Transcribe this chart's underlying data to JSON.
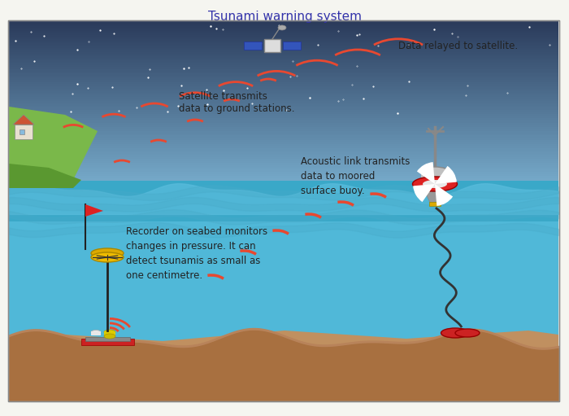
{
  "title": "Tsunami warning system",
  "title_color": "#3333aa",
  "bg_color": "#f5f5f0",
  "sky_color_top": "#2a3a5a",
  "sky_color_bottom": "#7ab0d0",
  "sea_color": "#4aabcc",
  "seabed_color": "#b8835a",
  "labels": {
    "satellite": "Data relayed to satellite.",
    "ground": "Satellite transmits\ndata to ground stations.",
    "acoustic": "Acoustic link transmits\ndata to moored\nsurface buoy.",
    "recorder": "Recorder on seabed monitors\nchanges in pressure. It can\ndetect tsunamis as small as\none centimetre."
  },
  "signal_color": "#e84830",
  "wave_color": "#5ab8d8",
  "land_color": "#6aaa44"
}
